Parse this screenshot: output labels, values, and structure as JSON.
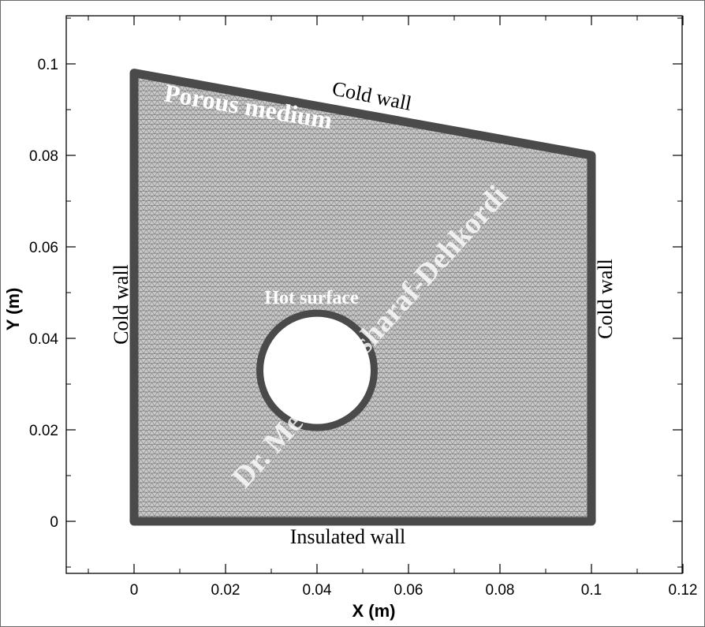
{
  "chart_data": {
    "type": "mesh",
    "xlabel": "X (m)",
    "ylabel": "Y (m)",
    "xlim": [
      -0.015,
      0.122
    ],
    "ylim": [
      -0.011,
      0.111
    ],
    "x_ticks": [
      0,
      0.02,
      0.04,
      0.06,
      0.08,
      0.1,
      0.12
    ],
    "x_tick_labels": [
      "0",
      "0.02",
      "0.04",
      "0.06",
      "0.08",
      "0.1",
      "0.12"
    ],
    "y_ticks": [
      0,
      0.02,
      0.04,
      0.06,
      0.08,
      0.1
    ],
    "y_tick_labels": [
      "0",
      "0.02",
      "0.04",
      "0.06",
      "0.08",
      "0.1"
    ],
    "domain_outline": [
      [
        0,
        0
      ],
      [
        0,
        0.098
      ],
      [
        0.1,
        0.08
      ],
      [
        0.1,
        0
      ]
    ],
    "hole": {
      "center": [
        0.04,
        0.033
      ],
      "radius": 0.0125
    },
    "mesh_color": "#7a7a7a",
    "boundary_color": "#4a4a4a"
  },
  "annotations": {
    "cold_wall_top": "Cold wall",
    "cold_wall_left": "Cold wall",
    "cold_wall_right": "Cold wall",
    "insulated_wall": "Insulated wall",
    "hot_surface": "Hot surface",
    "porous_medium": "Porous medium"
  },
  "watermark": "Dr. Mehdi Mosharaf-Dehkordi"
}
